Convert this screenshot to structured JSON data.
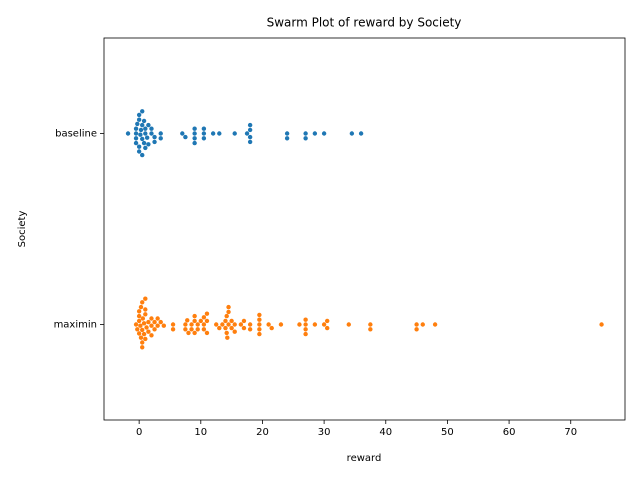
{
  "chart_data": {
    "type": "swarm",
    "title": "Swarm Plot of reward by Society",
    "xlabel": "reward",
    "ylabel": "Society",
    "categories": [
      "baseline",
      "maximin"
    ],
    "colors": [
      "#1f77b4",
      "#ff7f0e"
    ],
    "values": [
      [
        -1.8,
        -0.5,
        -0.5,
        -0.5,
        -0.5,
        -0.3,
        0,
        0,
        0,
        0,
        0.2,
        0.3,
        0.5,
        0.5,
        0.5,
        0.5,
        0.8,
        0.8,
        1,
        1,
        1,
        1.3,
        1.5,
        1.5,
        2,
        2,
        2.5,
        2.5,
        3.5,
        3.5,
        7,
        7.5,
        9,
        9,
        9,
        9,
        10.5,
        10.5,
        10.5,
        12,
        13,
        15.5,
        17.5,
        18,
        18,
        18,
        18,
        24,
        24,
        27,
        27,
        28.5,
        30,
        34.5,
        36
      ],
      [
        -0.5,
        -0.3,
        0,
        0,
        0,
        0,
        0.2,
        0.3,
        0.3,
        0.5,
        0.5,
        0.5,
        0.5,
        0.6,
        0.8,
        0.8,
        1,
        1,
        1,
        1,
        1.2,
        1.5,
        1.5,
        2,
        2,
        2,
        2.5,
        2.5,
        3,
        3,
        3.5,
        4,
        5.5,
        5.5,
        7.5,
        7.5,
        7.8,
        8,
        8.5,
        8.5,
        9,
        9,
        9,
        9.5,
        9.5,
        10,
        10.5,
        10.5,
        10.5,
        11,
        11,
        11,
        12.5,
        13,
        13.5,
        14,
        14,
        14.2,
        14.2,
        14.3,
        14.5,
        14.5,
        14.5,
        15,
        15,
        15.5,
        15.5,
        16.5,
        17,
        17,
        18,
        18,
        19.5,
        19.5,
        19.5,
        19.5,
        19.5,
        21,
        21.5,
        23,
        26,
        27,
        27,
        27,
        27,
        28.5,
        30,
        30.5,
        30.5,
        34,
        37.5,
        37.5,
        45,
        45,
        46,
        48,
        75
      ]
    ],
    "xlim": [
      -5.7,
      78.8
    ],
    "xticks": [
      0,
      10,
      20,
      30,
      40,
      50,
      60,
      70
    ]
  }
}
